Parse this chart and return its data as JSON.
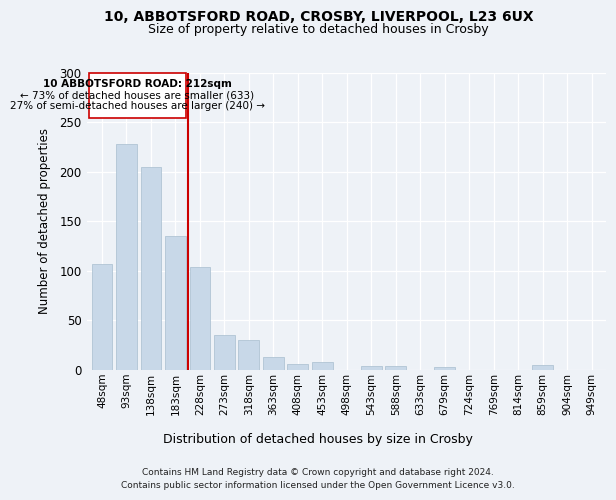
{
  "title1": "10, ABBOTSFORD ROAD, CROSBY, LIVERPOOL, L23 6UX",
  "title2": "Size of property relative to detached houses in Crosby",
  "xlabel": "Distribution of detached houses by size in Crosby",
  "ylabel": "Number of detached properties",
  "categories": [
    "48sqm",
    "93sqm",
    "138sqm",
    "183sqm",
    "228sqm",
    "273sqm",
    "318sqm",
    "363sqm",
    "408sqm",
    "453sqm",
    "498sqm",
    "543sqm",
    "588sqm",
    "633sqm",
    "679sqm",
    "724sqm",
    "769sqm",
    "814sqm",
    "859sqm",
    "904sqm",
    "949sqm"
  ],
  "values": [
    107,
    228,
    205,
    135,
    104,
    35,
    30,
    13,
    6,
    8,
    0,
    4,
    4,
    0,
    3,
    0,
    0,
    0,
    5,
    0,
    0
  ],
  "bar_color": "#c8d8e8",
  "bar_edge_color": "#a8bece",
  "annotation_text_line1": "10 ABBOTSFORD ROAD: 212sqm",
  "annotation_text_line2": "← 73% of detached houses are smaller (633)",
  "annotation_text_line3": "27% of semi-detached houses are larger (240) →",
  "red_line_color": "#cc0000",
  "box_edge_color": "#cc0000",
  "ylim": [
    0,
    300
  ],
  "yticks": [
    0,
    50,
    100,
    150,
    200,
    250,
    300
  ],
  "footer": "Contains HM Land Registry data © Crown copyright and database right 2024.\nContains public sector information licensed under the Open Government Licence v3.0.",
  "bg_color": "#eef2f7",
  "plot_bg_color": "#eef2f7"
}
